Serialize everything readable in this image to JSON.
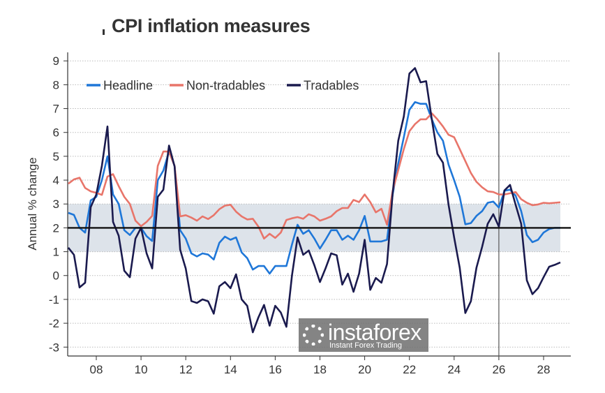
{
  "title": "CPI inflation measures",
  "chart_data": {
    "type": "line",
    "title": "CPI inflation measures",
    "ylabel": "Annual % change",
    "xlabel": "",
    "x_start": 2006.75,
    "x_step": 0.25,
    "xlim": [
      2006.6,
      2029.2
    ],
    "ylim": [
      -3.4,
      9.4
    ],
    "yticks": [
      -3,
      -2,
      -1,
      0,
      1,
      2,
      3,
      4,
      5,
      6,
      7,
      8,
      9
    ],
    "xticks": [
      2008,
      2010,
      2012,
      2014,
      2016,
      2018,
      2020,
      2022,
      2024,
      2026,
      2028
    ],
    "xtick_labels": [
      "08",
      "10",
      "12",
      "14",
      "16",
      "18",
      "20",
      "22",
      "24",
      "26",
      "28"
    ],
    "grid": "horizontal dotted",
    "legend_position": "top-left",
    "target_band": [
      1,
      3
    ],
    "target_band_end": 2028.75,
    "target_midpoint": 2,
    "vertical_line_x": 2026,
    "series": [
      {
        "name": "Headline",
        "color": "#1f77d8",
        "values": [
          2.63,
          2.54,
          2.0,
          1.8,
          3.15,
          3.3,
          4.0,
          5.0,
          3.4,
          3.0,
          1.9,
          1.7,
          2.0,
          2.0,
          1.65,
          1.45,
          4.0,
          4.4,
          5.2,
          4.6,
          1.9,
          1.55,
          0.93,
          0.8,
          0.93,
          0.88,
          0.67,
          1.37,
          1.63,
          1.5,
          1.6,
          0.97,
          0.73,
          0.25,
          0.4,
          0.4,
          0.08,
          0.4,
          0.4,
          0.4,
          1.3,
          2.13,
          1.75,
          1.9,
          1.55,
          1.13,
          1.5,
          1.9,
          1.9,
          1.5,
          1.67,
          1.5,
          1.9,
          2.5,
          1.43,
          1.43,
          1.43,
          1.5,
          3.4,
          4.7,
          5.8,
          6.95,
          7.27,
          7.2,
          7.2,
          6.55,
          6.0,
          5.65,
          4.65,
          4.0,
          3.3,
          2.15,
          2.2,
          2.5,
          2.7,
          3.05,
          3.1,
          2.85,
          3.55,
          3.6,
          3.35,
          2.7,
          1.7,
          1.4,
          1.5,
          1.8,
          1.95,
          2.0,
          2.0
        ]
      },
      {
        "name": "Non-tradables",
        "color": "#e8756a",
        "values": [
          3.85,
          4.03,
          4.1,
          3.67,
          3.53,
          3.47,
          3.38,
          4.15,
          4.25,
          3.75,
          3.3,
          3.0,
          2.3,
          2.07,
          2.25,
          2.5,
          4.6,
          5.2,
          5.2,
          4.6,
          2.48,
          2.53,
          2.43,
          2.3,
          2.48,
          2.37,
          2.53,
          2.78,
          2.93,
          2.97,
          2.68,
          2.48,
          2.35,
          2.38,
          2.05,
          1.55,
          1.75,
          1.58,
          1.8,
          2.33,
          2.4,
          2.45,
          2.38,
          2.57,
          2.48,
          2.3,
          2.38,
          2.48,
          2.7,
          2.83,
          2.83,
          3.17,
          3.08,
          3.4,
          3.08,
          2.65,
          2.8,
          2.13,
          3.55,
          4.42,
          5.3,
          6.05,
          6.35,
          6.55,
          6.55,
          6.8,
          6.55,
          6.25,
          5.9,
          5.8,
          5.3,
          4.8,
          4.3,
          3.93,
          3.7,
          3.53,
          3.5,
          3.4,
          3.4,
          3.45,
          3.5,
          3.2,
          3.05,
          2.95,
          2.98,
          3.05,
          3.03,
          3.05,
          3.07
        ]
      },
      {
        "name": "Tradables",
        "color": "#1a1a4e",
        "values": [
          1.17,
          0.87,
          -0.5,
          -0.3,
          2.87,
          3.4,
          4.6,
          6.25,
          2.25,
          1.67,
          0.2,
          -0.07,
          1.55,
          2.0,
          0.93,
          0.3,
          3.3,
          3.6,
          5.45,
          4.57,
          1.08,
          0.29,
          -1.07,
          -1.15,
          -1.0,
          -1.08,
          -1.6,
          -0.45,
          -0.27,
          -0.53,
          0.05,
          -1.0,
          -1.27,
          -2.38,
          -1.75,
          -1.23,
          -2.1,
          -1.27,
          -1.55,
          -2.15,
          0.0,
          1.6,
          0.87,
          1.05,
          0.43,
          -0.27,
          0.3,
          0.93,
          0.85,
          -0.38,
          0.08,
          -0.68,
          0.08,
          1.5,
          -0.6,
          -0.1,
          -0.3,
          0.48,
          3.45,
          5.65,
          6.67,
          8.47,
          8.7,
          8.1,
          8.15,
          6.55,
          5.1,
          4.73,
          2.97,
          1.6,
          0.33,
          -1.57,
          -1.08,
          0.33,
          1.2,
          2.17,
          2.57,
          2.05,
          3.57,
          3.8,
          2.97,
          2.17,
          -0.2,
          -0.78,
          -0.53,
          -0.07,
          0.37,
          0.45,
          0.55
        ]
      }
    ],
    "band_color": "#dde3ea"
  },
  "watermark": {
    "name": "instaforex",
    "tagline": "Instant Forex Trading"
  }
}
